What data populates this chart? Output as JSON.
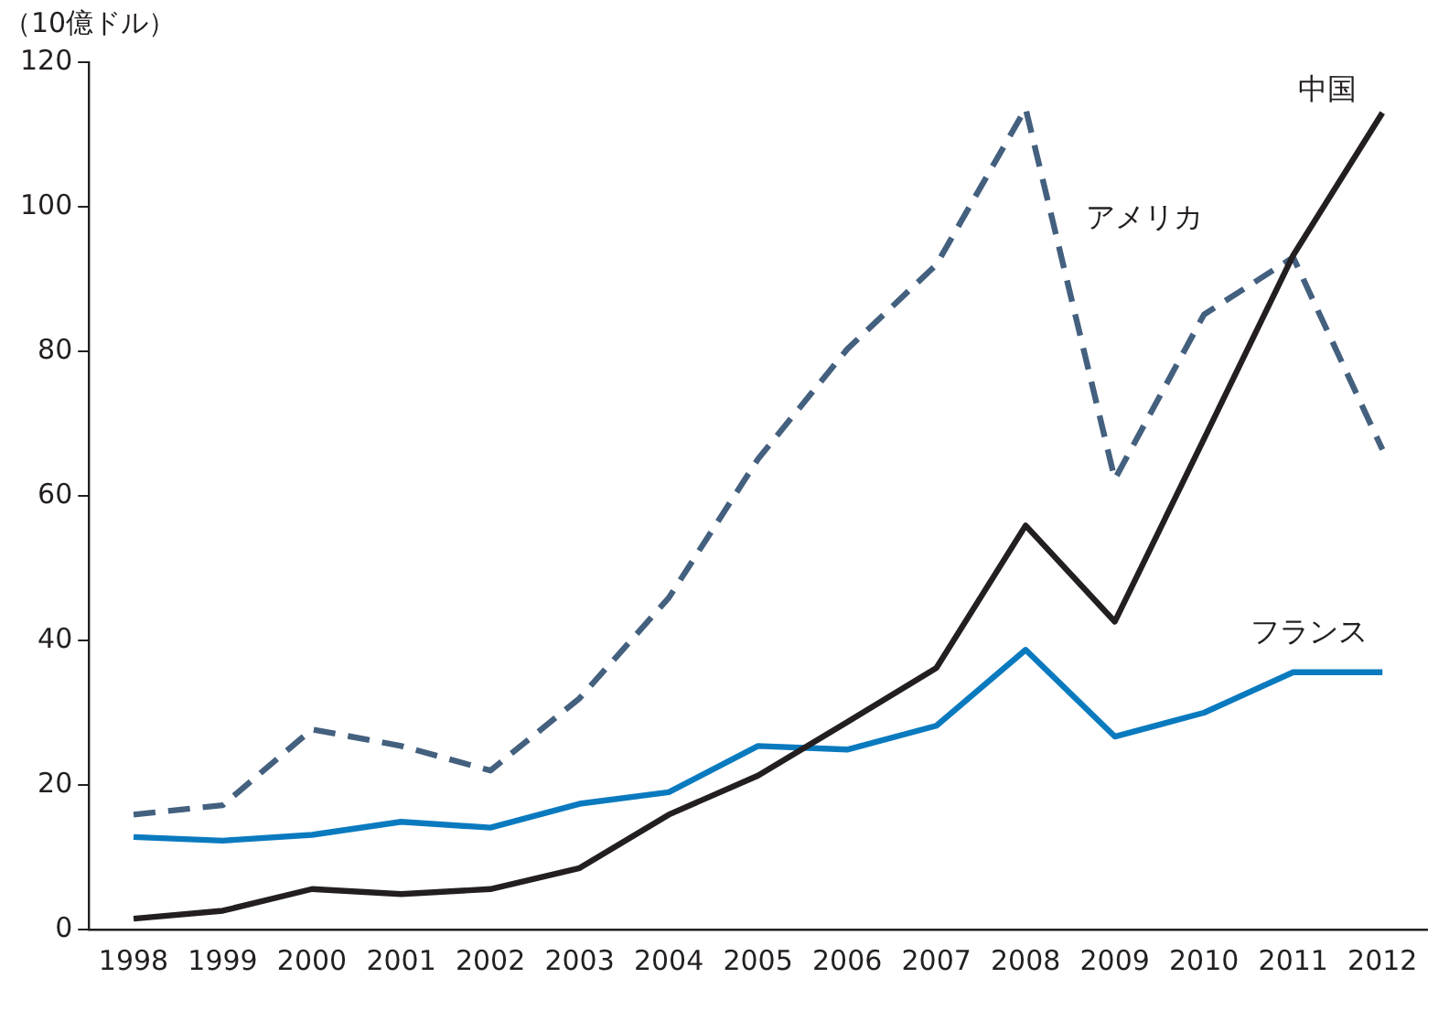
{
  "chart_data": {
    "type": "line",
    "ylabel": "（10億ドル）",
    "categories": [
      "1998",
      "1999",
      "2000",
      "2001",
      "2002",
      "2003",
      "2004",
      "2005",
      "2006",
      "2007",
      "2008",
      "2009",
      "2010",
      "2011",
      "2012"
    ],
    "series": [
      {
        "name": "中国",
        "color": "#231f20",
        "line_style": "solid",
        "values": [
          1.5,
          2.6,
          5.6,
          4.9,
          5.6,
          8.5,
          15.9,
          21.3,
          28.7,
          36.2,
          55.9,
          42.6,
          67.9,
          93.3,
          113
        ]
      },
      {
        "name": "アメリカ",
        "color": "#44607f",
        "line_style": "dashed",
        "values": [
          15.9,
          17.2,
          27.7,
          25.4,
          22,
          32,
          45.9,
          65.1,
          80.3,
          92,
          113.6,
          62.3,
          85.1,
          93,
          66.4
        ]
      },
      {
        "name": "フランス",
        "color": "#0a7abf",
        "line_style": "solid",
        "values": [
          12.8,
          12.3,
          13.1,
          14.9,
          14.1,
          17.4,
          19,
          25.4,
          24.9,
          28.2,
          38.7,
          26.7,
          30,
          35.6,
          35.6
        ]
      }
    ],
    "ylim": [
      0,
      120
    ],
    "yticks": [
      0,
      20,
      40,
      60,
      80,
      100,
      120
    ],
    "grid": false,
    "legend": false,
    "marker": "none"
  }
}
